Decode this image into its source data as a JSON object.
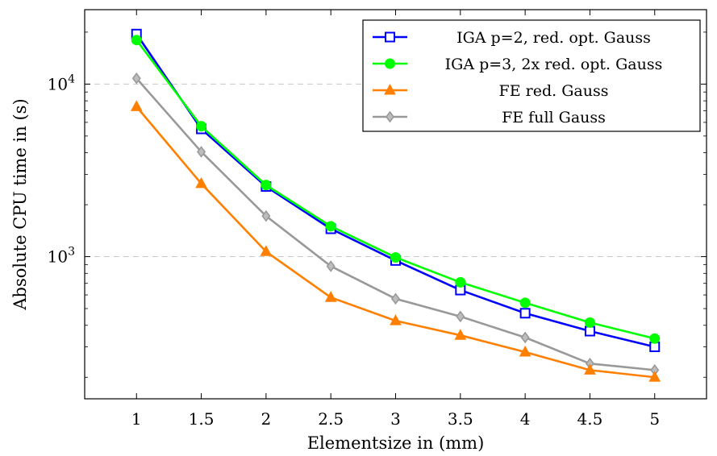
{
  "chart_data": {
    "type": "line",
    "title": "",
    "xlabel": "Elementsize in (mm)",
    "ylabel": "Absolute CPU time in (s)",
    "x": [
      1,
      1.5,
      2,
      2.5,
      3,
      3.5,
      4,
      4.5,
      5
    ],
    "x_tick_labels": [
      "1",
      "1.5",
      "2",
      "2.5",
      "3",
      "3.5",
      "4",
      "4.5",
      "5"
    ],
    "xlim": [
      0.6,
      5.4
    ],
    "y_scale": "log",
    "ylim": [
      150,
      27000
    ],
    "y_ticks": [
      {
        "value": 1000,
        "base": "10",
        "exp": "3"
      },
      {
        "value": 10000,
        "base": "10",
        "exp": "4"
      }
    ],
    "grid": "horizontal dashed at major ticks",
    "legend_position": "top-right",
    "series": [
      {
        "name": "IGA p=2, red. opt. Gauss",
        "color": "#0000ff",
        "marker": "square-open",
        "values": [
          19500,
          5500,
          2550,
          1450,
          950,
          640,
          470,
          370,
          300
        ]
      },
      {
        "name": "IGA p=3, 2x red. opt. Gauss",
        "color": "#00ff00",
        "marker": "circle-filled",
        "values": [
          18000,
          5700,
          2600,
          1500,
          990,
          710,
          540,
          415,
          335
        ]
      },
      {
        "name": "FE red. Gauss",
        "color": "#ff8000",
        "marker": "triangle-filled",
        "values": [
          7400,
          2650,
          1070,
          580,
          425,
          350,
          280,
          220,
          200
        ]
      },
      {
        "name": "FE full Gauss",
        "color": "#999999",
        "marker": "diamond-filled",
        "values": [
          10800,
          4050,
          1720,
          880,
          570,
          450,
          340,
          240,
          220
        ]
      }
    ]
  }
}
